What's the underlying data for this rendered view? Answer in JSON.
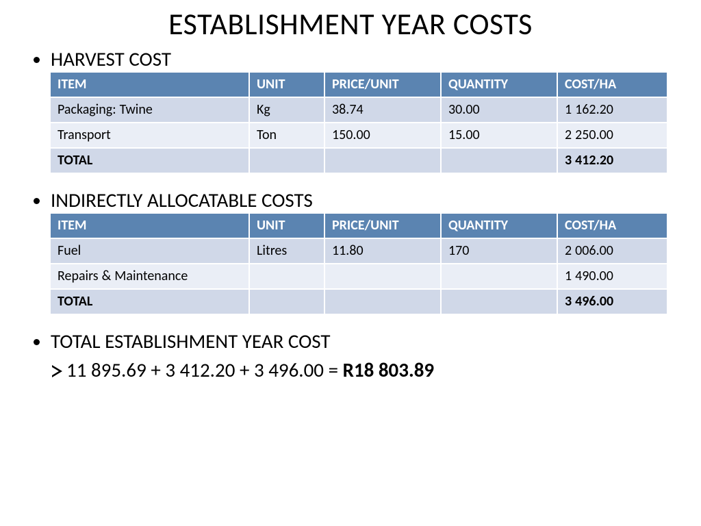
{
  "title": "ESTABLISHMENT YEAR COSTS",
  "colors": {
    "header_bg": "#5b84b1",
    "header_fg": "#ffffff",
    "row_even": "#d0d8e8",
    "row_odd": "#eaeef6",
    "text": "#000000",
    "background": "#ffffff"
  },
  "sections": {
    "harvest": {
      "heading": "HARVEST COST",
      "columns": [
        "ITEM",
        "UNIT",
        "PRICE/UNIT",
        "QUANTITY",
        "COST/HA"
      ],
      "rows": [
        {
          "item": "Packaging: Twine",
          "unit": "Kg",
          "price": "  38.74",
          "qty": "30.00",
          "cost": "1 162.20"
        },
        {
          "item": "Transport",
          "unit": "Ton",
          "price": "150.00",
          "qty": "15.00",
          "cost": "2 250.00"
        }
      ],
      "total_label": "TOTAL",
      "total_cost": "3 412.20"
    },
    "indirect": {
      "heading": "INDIRECTLY ALLOCATABLE COSTS",
      "columns": [
        "ITEM",
        "UNIT",
        "PRICE/UNIT",
        "QUANTITY",
        "COST/HA"
      ],
      "rows": [
        {
          "item": "Fuel",
          "unit": "Litres",
          "price": "11.80",
          "qty": "170",
          "cost": "2 006.00"
        },
        {
          "item": "Repairs & Maintenance",
          "unit": "",
          "price": "",
          "qty": "",
          "cost": "1 490.00"
        }
      ],
      "total_label": "TOTAL",
      "total_cost": "3 496.00"
    },
    "grand_total": {
      "heading": "TOTAL ESTABLISHMENT YEAR COST",
      "expression": "11 895.69 + 3 412.20 + 3 496.00 = ",
      "result": "R18 803.89"
    }
  }
}
